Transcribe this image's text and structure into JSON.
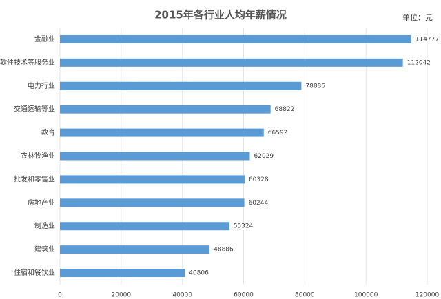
{
  "chart_data": {
    "type": "bar",
    "orientation": "horizontal",
    "title": "2015年各行业人均年薪情况",
    "subtitle": "单位：元",
    "categories": [
      "金融业",
      "软件技术等服务业",
      "电力行业",
      "交通运输等业",
      "教育",
      "农林牧渔业",
      "批发和零售业",
      "房地产业",
      "制造业",
      "建筑业",
      "住宿和餐饮业"
    ],
    "values": [
      114777,
      112042,
      78886,
      68822,
      66592,
      62029,
      60328,
      60244,
      55324,
      48886,
      40806
    ],
    "color": "#5b9bd5",
    "xlim": [
      0,
      120000
    ],
    "xticks": [
      0,
      20000,
      40000,
      60000,
      80000,
      100000,
      120000
    ],
    "grid": true
  }
}
